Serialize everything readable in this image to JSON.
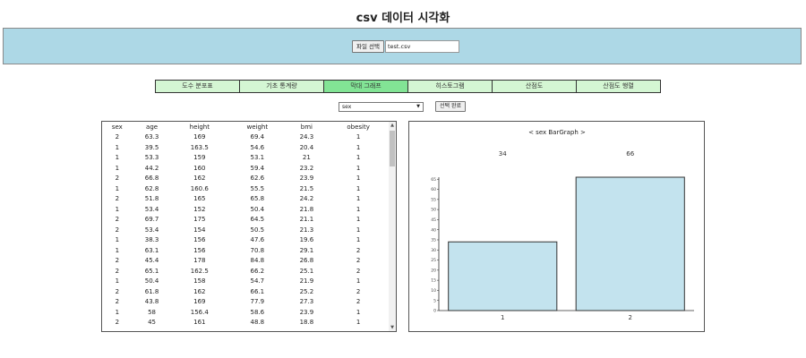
{
  "app": {
    "title": "csv 데이터 시각화"
  },
  "upload": {
    "button_label": "파일 선택",
    "file_name": "test.csv"
  },
  "tabs": [
    {
      "label": "도수 분포표",
      "active": false
    },
    {
      "label": "기초 통계량",
      "active": false
    },
    {
      "label": "막대 그래프",
      "active": true
    },
    {
      "label": "히스토그램",
      "active": false
    },
    {
      "label": "산점도",
      "active": false
    },
    {
      "label": "산점도 행렬",
      "active": false
    }
  ],
  "controls": {
    "selected_column": "sex",
    "confirm_label": "선택 완료"
  },
  "table": {
    "headers": [
      "sex",
      "age",
      "height",
      "weight",
      "bmi",
      "obesity"
    ],
    "rows": [
      [
        "2",
        "63.3",
        "169",
        "69.4",
        "24.3",
        "1"
      ],
      [
        "1",
        "39.5",
        "163.5",
        "54.6",
        "20.4",
        "1"
      ],
      [
        "1",
        "53.3",
        "159",
        "53.1",
        "21",
        "1"
      ],
      [
        "1",
        "44.2",
        "160",
        "59.4",
        "23.2",
        "1"
      ],
      [
        "2",
        "66.8",
        "162",
        "62.6",
        "23.9",
        "1"
      ],
      [
        "1",
        "62.8",
        "160.6",
        "55.5",
        "21.5",
        "1"
      ],
      [
        "2",
        "51.8",
        "165",
        "65.8",
        "24.2",
        "1"
      ],
      [
        "1",
        "53.4",
        "152",
        "50.4",
        "21.8",
        "1"
      ],
      [
        "2",
        "69.7",
        "175",
        "64.5",
        "21.1",
        "1"
      ],
      [
        "2",
        "53.4",
        "154",
        "50.5",
        "21.3",
        "1"
      ],
      [
        "1",
        "38.3",
        "156",
        "47.6",
        "19.6",
        "1"
      ],
      [
        "1",
        "63.1",
        "156",
        "70.8",
        "29.1",
        "2"
      ],
      [
        "2",
        "45.4",
        "178",
        "84.8",
        "26.8",
        "2"
      ],
      [
        "2",
        "65.1",
        "162.5",
        "66.2",
        "25.1",
        "2"
      ],
      [
        "1",
        "50.4",
        "158",
        "54.7",
        "21.9",
        "1"
      ],
      [
        "2",
        "61.8",
        "162",
        "66.1",
        "25.2",
        "2"
      ],
      [
        "2",
        "43.8",
        "169",
        "77.9",
        "27.3",
        "2"
      ],
      [
        "1",
        "58",
        "156.4",
        "58.6",
        "23.9",
        "1"
      ],
      [
        "2",
        "45",
        "161",
        "48.8",
        "18.8",
        "1"
      ]
    ]
  },
  "chart_data": {
    "type": "bar",
    "title": "< sex BarGraph >",
    "categories": [
      "1",
      "2"
    ],
    "values": [
      34,
      66
    ],
    "yticks": [
      0,
      5,
      10,
      15,
      20,
      25,
      30,
      35,
      40,
      45,
      50,
      55,
      60,
      65
    ],
    "ylim": [
      0,
      66
    ],
    "color": "#c3e3ee"
  }
}
